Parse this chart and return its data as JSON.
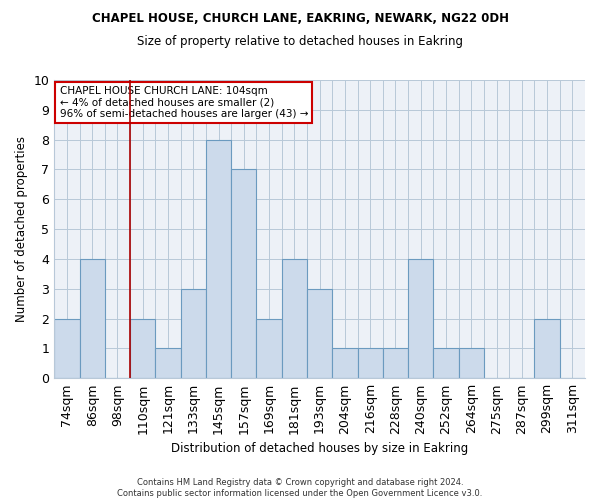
{
  "title": "CHAPEL HOUSE, CHURCH LANE, EAKRING, NEWARK, NG22 0DH",
  "subtitle": "Size of property relative to detached houses in Eakring",
  "xlabel": "Distribution of detached houses by size in Eakring",
  "ylabel": "Number of detached properties",
  "categories": [
    "74sqm",
    "86sqm",
    "98sqm",
    "110sqm",
    "121sqm",
    "133sqm",
    "145sqm",
    "157sqm",
    "169sqm",
    "181sqm",
    "193sqm",
    "204sqm",
    "216sqm",
    "228sqm",
    "240sqm",
    "252sqm",
    "264sqm",
    "275sqm",
    "287sqm",
    "299sqm",
    "311sqm"
  ],
  "values": [
    2,
    4,
    0,
    2,
    1,
    3,
    8,
    7,
    2,
    4,
    3,
    1,
    1,
    1,
    4,
    1,
    1,
    0,
    0,
    2,
    0
  ],
  "bar_color": "#ccdaeb",
  "bar_edge_color": "#6b9abf",
  "vline_x": 3,
  "vline_color": "#aa0000",
  "ylim": [
    0,
    10
  ],
  "yticks": [
    0,
    1,
    2,
    3,
    4,
    5,
    6,
    7,
    8,
    9,
    10
  ],
  "annotation_text": "CHAPEL HOUSE CHURCH LANE: 104sqm\n← 4% of detached houses are smaller (2)\n96% of semi-detached houses are larger (43) →",
  "annotation_box_color": "#ffffff",
  "annotation_box_edge": "#cc0000",
  "footer1": "Contains HM Land Registry data © Crown copyright and database right 2024.",
  "footer2": "Contains public sector information licensed under the Open Government Licence v3.0."
}
